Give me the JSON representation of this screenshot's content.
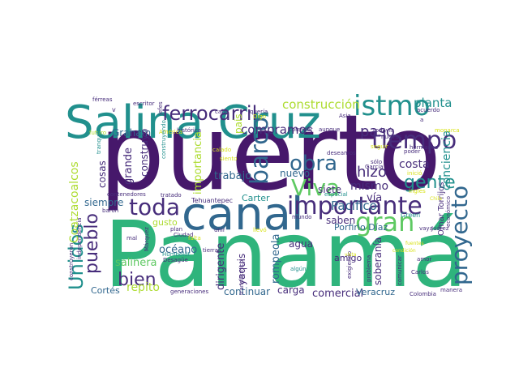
{
  "word_cloud": {
    "palette": {
      "dark_purple": "#46186b",
      "purple": "#472d7b",
      "blue": "#31678e",
      "teal": "#21908d",
      "green": "#2fb47c",
      "light_green": "#5ec962",
      "yellow_green": "#addc30",
      "yellow": "#d8e219"
    },
    "words": [
      {
        "text": "puerto",
        "color": "dark_purple"
      },
      {
        "text": "Panamá",
        "color": "green"
      },
      {
        "text": "Salina Cruz",
        "color": "teal"
      },
      {
        "text": "canal",
        "color": "blue"
      },
      {
        "text": "istmo",
        "color": "teal"
      },
      {
        "text": "importante",
        "color": "purple"
      },
      {
        "text": "tiempo",
        "color": "purple"
      },
      {
        "text": "ferrocarril",
        "color": "purple"
      },
      {
        "text": "construcción",
        "color": "yellow_green"
      },
      {
        "text": "planta",
        "color": "teal"
      },
      {
        "text": "obra",
        "color": "blue"
      },
      {
        "text": "Viva",
        "color": "light_green"
      },
      {
        "text": "toda",
        "color": "purple"
      },
      {
        "text": "barco",
        "color": "blue"
      },
      {
        "text": "gente",
        "color": "teal"
      },
      {
        "text": "gran",
        "color": "light_green"
      },
      {
        "text": "proyecto",
        "color": "blue"
      },
      {
        "text": "pueblo",
        "color": "purple"
      },
      {
        "text": "Unidos",
        "color": "teal"
      },
      {
        "text": "bien",
        "color": "purple"
      },
      {
        "text": "hizo",
        "color": "purple"
      },
      {
        "text": "paso",
        "color": "purple"
      },
      {
        "text": "conciencia",
        "color": "teal"
      },
      {
        "text": "compramos",
        "color": "purple"
      },
      {
        "text": "Graham",
        "color": "blue"
      },
      {
        "text": "trabajo",
        "color": "blue"
      },
      {
        "text": "Coatzacoalcos",
        "color": "yellow_green"
      },
      {
        "text": "costa",
        "color": "purple"
      },
      {
        "text": "mismo",
        "color": "purple"
      },
      {
        "text": "nuevo",
        "color": "blue"
      },
      {
        "text": "siete",
        "color": "purple"
      },
      {
        "text": "Pacífico",
        "color": "blue"
      },
      {
        "text": "vía",
        "color": "purple"
      },
      {
        "text": "saben",
        "color": "purple"
      },
      {
        "text": "agua",
        "color": "purple"
      },
      {
        "text": "océano",
        "color": "blue"
      },
      {
        "text": "yaquis",
        "color": "purple"
      },
      {
        "text": "salinera",
        "color": "light_green"
      },
      {
        "text": "repito",
        "color": "yellow_green"
      },
      {
        "text": "Cortés",
        "color": "blue"
      },
      {
        "text": "continuar",
        "color": "blue"
      },
      {
        "text": "carga",
        "color": "purple"
      },
      {
        "text": "comercial",
        "color": "purple"
      },
      {
        "text": "Veracruz",
        "color": "blue"
      },
      {
        "text": "soberanía",
        "color": "purple"
      },
      {
        "text": "rompeola",
        "color": "blue"
      },
      {
        "text": "dirigente",
        "color": "purple"
      },
      {
        "text": "amigo",
        "color": "purple"
      },
      {
        "text": "Carter",
        "color": "teal"
      },
      {
        "text": "gusto",
        "color": "yellow_green"
      },
      {
        "text": "siempre",
        "color": "blue"
      },
      {
        "text": "cosas",
        "color": "purple"
      },
      {
        "text": "grande",
        "color": "purple"
      },
      {
        "text": "construyó",
        "color": "purple"
      },
      {
        "text": "importancia",
        "color": "yellow_green"
      },
      {
        "text": "país",
        "color": "yellow_green"
      },
      {
        "text": "Porfirio Díaz",
        "color": "blue"
      },
      {
        "text": "Omar Torrijos",
        "color": "purple"
      },
      {
        "text": "Green",
        "color": "teal"
      },
      {
        "text": "especial",
        "color": "teal"
      },
      {
        "text": "Tehuantepec",
        "color": "purple"
      },
      {
        "text": "deseamos",
        "color": "purple"
      },
      {
        "text": "futuro",
        "color": "yellow_green"
      },
      {
        "text": "histórica",
        "color": "purple"
      },
      {
        "text": "corredor",
        "color": "purple"
      },
      {
        "text": "aunque",
        "color": "purple"
      },
      {
        "text": "todavía",
        "color": "purple"
      },
      {
        "text": "monarca",
        "color": "yellow"
      },
      {
        "text": "férreas",
        "color": "purple"
      },
      {
        "text": "escritor",
        "color": "purple"
      },
      {
        "text": "jefes",
        "color": "purple"
      },
      {
        "text": "cabo",
        "color": "purple"
      },
      {
        "text": "quería",
        "color": "purple"
      },
      {
        "text": "acuerdo",
        "color": "purple"
      },
      {
        "text": "Asia",
        "color": "purple"
      },
      {
        "text": "Digo",
        "color": "yellow"
      },
      {
        "text": "América",
        "color": "yellow"
      },
      {
        "text": "calado",
        "color": "yellow"
      },
      {
        "text": "siento",
        "color": "yellow"
      },
      {
        "text": "poder",
        "color": "purple"
      },
      {
        "text": "nuevas",
        "color": "purple"
      },
      {
        "text": "hermanos",
        "color": "purple"
      },
      {
        "text": "inició",
        "color": "yellow"
      },
      {
        "text": "seguir",
        "color": "yellow"
      },
      {
        "text": "sólo",
        "color": "purple"
      },
      {
        "text": "García",
        "color": "purple"
      },
      {
        "text": "ingles",
        "color": "yellow"
      },
      {
        "text": "tratado",
        "color": "purple"
      },
      {
        "text": "contenedores",
        "color": "purple"
      },
      {
        "text": "barón",
        "color": "purple"
      },
      {
        "text": "tranquilo",
        "color": "teal"
      },
      {
        "text": "construyendo",
        "color": "teal"
      },
      {
        "text": "mal",
        "color": "purple"
      },
      {
        "text": "plan",
        "color": "purple"
      },
      {
        "text": "Ciudad",
        "color": "purple"
      },
      {
        "text": "unir",
        "color": "purple"
      },
      {
        "text": "llevó",
        "color": "yellow"
      },
      {
        "text": "mundo",
        "color": "purple"
      },
      {
        "text": "falta",
        "color": "yellow"
      },
      {
        "text": "Humboldt",
        "color": "teal"
      },
      {
        "text": "Desagüe",
        "color": "purple"
      },
      {
        "text": "Márquez",
        "color": "purple"
      },
      {
        "text": "tierras",
        "color": "purple"
      },
      {
        "text": "independencia",
        "color": "purple"
      },
      {
        "text": "construyeron",
        "color": "purple"
      },
      {
        "text": "transístmico",
        "color": "purple"
      },
      {
        "text": "generaciones",
        "color": "purple"
      },
      {
        "text": "algún",
        "color": "teal"
      },
      {
        "text": "problema",
        "color": "purple"
      },
      {
        "text": "exigiendo",
        "color": "purple"
      },
      {
        "text": "comunicar",
        "color": "purple"
      },
      {
        "text": "Carlos",
        "color": "purple"
      },
      {
        "text": "Colombia",
        "color": "purple"
      },
      {
        "text": "manera",
        "color": "purple"
      },
      {
        "text": "amor",
        "color": "purple"
      },
      {
        "text": "vaya",
        "color": "purple"
      },
      {
        "text": "Juárez",
        "color": "purple"
      },
      {
        "text": "económico",
        "color": "purple"
      },
      {
        "text": "vista",
        "color": "yellow"
      },
      {
        "text": "condición",
        "color": "yellow"
      },
      {
        "text": "fuentes",
        "color": "yellow"
      },
      {
        "text": "Chile",
        "color": "yellow"
      },
      {
        "text": "a",
        "color": "purple"
      },
      {
        "text": "v",
        "color": "purple"
      }
    ]
  }
}
